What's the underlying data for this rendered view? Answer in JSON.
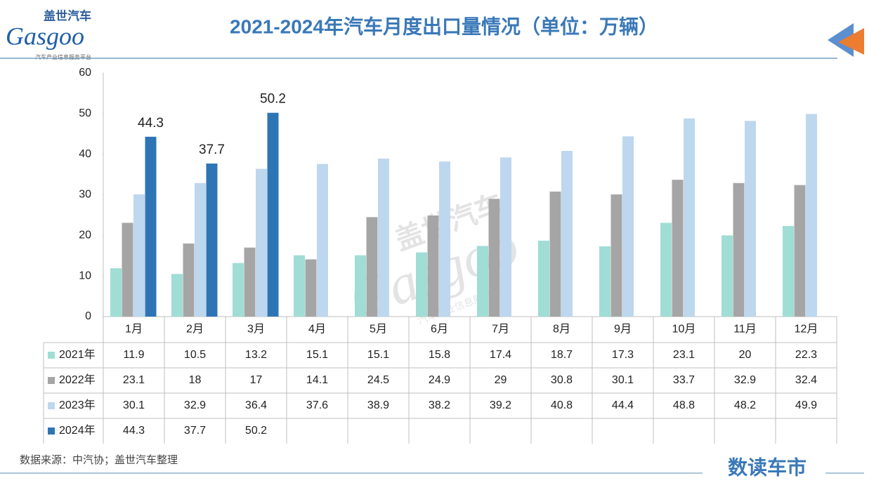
{
  "logo": {
    "brand_cn": "盖世汽车",
    "brand_en": "Gasgoo",
    "tagline": "汽车产业信息服务平台"
  },
  "source": "数据来源：中汽协；盖世汽车整理",
  "footer_brand": "数读车市",
  "chart_data": {
    "type": "bar",
    "title": "2021-2024年汽车月度出口量情况（单位：万辆）",
    "categories": [
      "1月",
      "2月",
      "3月",
      "4月",
      "5月",
      "6月",
      "7月",
      "8月",
      "9月",
      "10月",
      "11月",
      "12月"
    ],
    "series": [
      {
        "name": "2021年",
        "color": "#9fddd5",
        "values": [
          11.9,
          10.5,
          13.2,
          15.1,
          15.1,
          15.8,
          17.4,
          18.7,
          17.3,
          23.1,
          20,
          22.3
        ]
      },
      {
        "name": "2022年",
        "color": "#a5a5a5",
        "values": [
          23.1,
          18,
          17,
          14.1,
          24.5,
          24.9,
          29,
          30.8,
          30.1,
          33.7,
          32.9,
          32.4
        ]
      },
      {
        "name": "2023年",
        "color": "#bdd7ee",
        "values": [
          30.1,
          32.9,
          36.4,
          37.6,
          38.9,
          38.2,
          39.2,
          40.8,
          44.4,
          48.8,
          48.2,
          49.9
        ]
      },
      {
        "name": "2024年",
        "color": "#2e75b6",
        "values": [
          44.3,
          37.7,
          50.2,
          null,
          null,
          null,
          null,
          null,
          null,
          null,
          null,
          null
        ],
        "data_labels": true
      }
    ],
    "ylim": [
      0,
      60
    ],
    "yticks": [
      0,
      10,
      20,
      30,
      40,
      50,
      60
    ],
    "grid": false,
    "data_table": true
  }
}
